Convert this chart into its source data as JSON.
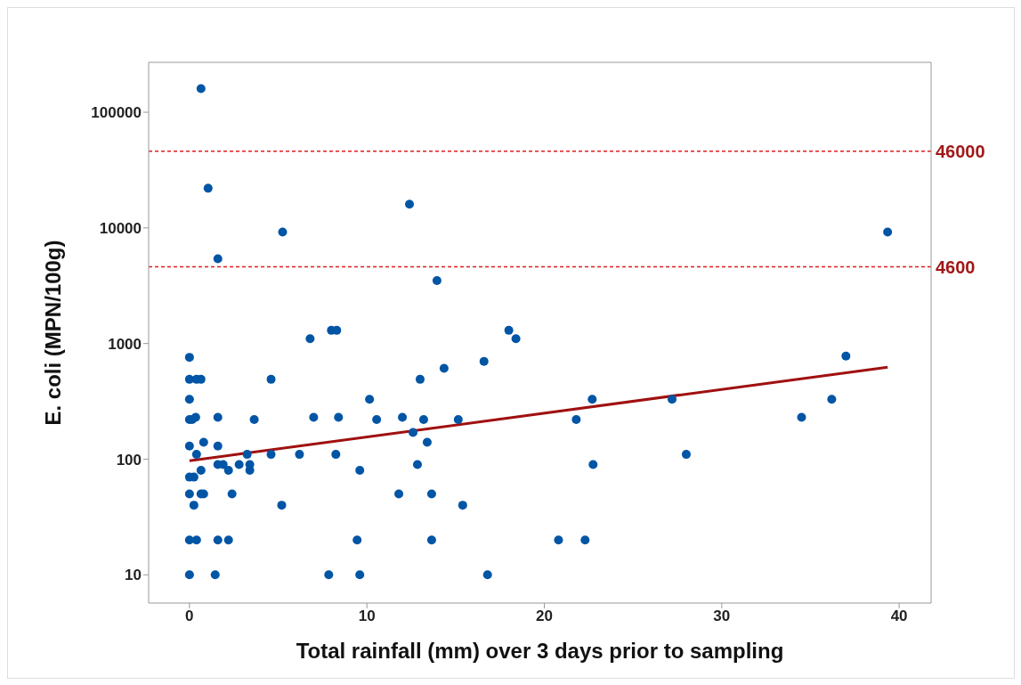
{
  "chart_data": {
    "type": "scatter",
    "xlabel": "Total rainfall (mm) over 3 days prior to sampling",
    "ylabel": "E. coli (MPN/100g)",
    "log": "y",
    "xlim": [
      -2.3,
      41.8
    ],
    "xticks": [
      0,
      10,
      20,
      30,
      40
    ],
    "ylim": [
      5.7,
      270000
    ],
    "yticks": [
      10,
      100,
      1000,
      10000,
      100000
    ],
    "marker": "circle",
    "series": [
      {
        "color": "#0055a5",
        "x": [
          0,
          0,
          0,
          0,
          0,
          0,
          0,
          0,
          0,
          0.4,
          0.65,
          0.35,
          0.15,
          1.6,
          3.65,
          4.6,
          0.8,
          1.6,
          0.4,
          3.25,
          4.6,
          0.65,
          1.6,
          1.9,
          2.2,
          2.8,
          3.4,
          3.4,
          0.25,
          0.65,
          0.8,
          2.4,
          0.25,
          5.2,
          0.4,
          1.6,
          2.2,
          1.45,
          0.65,
          1.05,
          5.25,
          1.6,
          12.4,
          13.95,
          6.8,
          8.0,
          8.3,
          18.0,
          18.4,
          16.6,
          14.35,
          13.0,
          10.15,
          7.0,
          8.4,
          10.55,
          12.0,
          13.2,
          15.15,
          12.6,
          13.4,
          6.2,
          8.25,
          9.6,
          12.85,
          11.8,
          13.65,
          15.4,
          9.45,
          13.65,
          7.85,
          9.6,
          16.8,
          21.8,
          20.8,
          22.3,
          22.7,
          22.75,
          27.2,
          28.0,
          34.5,
          36.2,
          37.0,
          39.35
        ],
        "values": [
          760,
          490,
          330,
          220,
          130,
          70,
          50,
          20,
          10,
          490,
          490,
          230,
          220,
          230,
          220,
          490,
          140,
          130,
          110,
          110,
          110,
          80,
          90,
          90,
          80,
          90,
          90,
          80,
          70,
          50,
          50,
          50,
          40,
          40,
          20,
          20,
          20,
          10,
          160000,
          22000,
          9200,
          5400,
          16000,
          3500,
          1100,
          1300,
          1300,
          1300,
          1100,
          700,
          610,
          490,
          330,
          230,
          230,
          220,
          230,
          220,
          220,
          170,
          140,
          110,
          110,
          80,
          90,
          50,
          50,
          40,
          20,
          20,
          10,
          10,
          10,
          220,
          20,
          20,
          330,
          90,
          330,
          110,
          230,
          330,
          780,
          9200
        ]
      },
      {
        "type": "line",
        "color": "#a01010",
        "line_style": "solid",
        "marker": "none",
        "x": [
          0,
          39.35
        ],
        "values": [
          97,
          625
        ]
      }
    ],
    "ref_lines": [
      {
        "axis": "y",
        "value": 46000,
        "label": "46000",
        "color": "#dd1f1f",
        "line_style": "dashed"
      },
      {
        "axis": "y",
        "value": 4600,
        "label": "4600",
        "color": "#dd1f1f",
        "line_style": "dashed"
      }
    ]
  }
}
